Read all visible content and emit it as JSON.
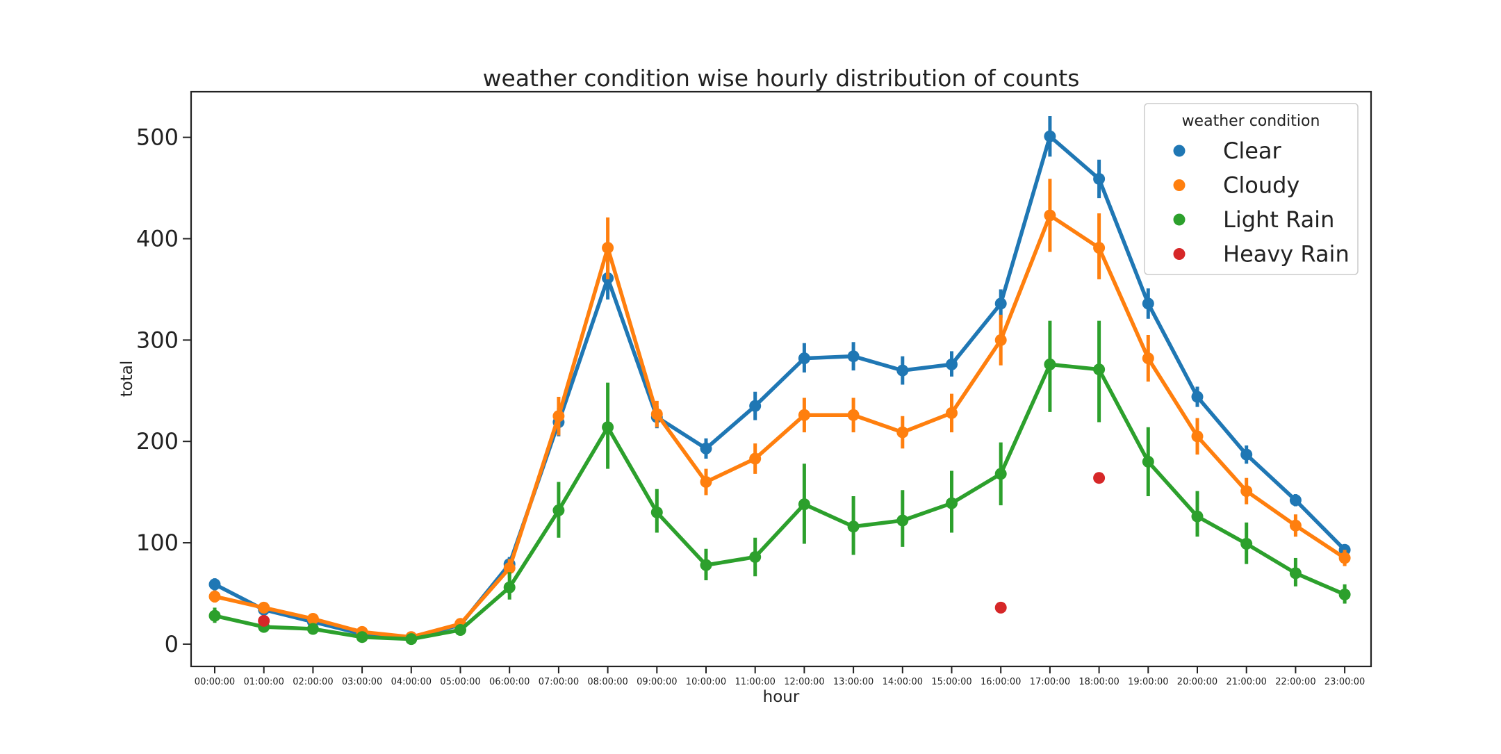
{
  "chart_data": {
    "type": "line",
    "title": "weather condition wise hourly distribution of counts",
    "xlabel": "hour",
    "ylabel": "total",
    "ylim": [
      -22,
      545
    ],
    "yticks": [
      0,
      100,
      200,
      300,
      400,
      500
    ],
    "grid": false,
    "legend": {
      "title": "weather condition",
      "placement": "top-right"
    },
    "categories": [
      "00:00:00",
      "01:00:00",
      "02:00:00",
      "03:00:00",
      "04:00:00",
      "05:00:00",
      "06:00:00",
      "07:00:00",
      "08:00:00",
      "09:00:00",
      "10:00:00",
      "11:00:00",
      "12:00:00",
      "13:00:00",
      "14:00:00",
      "15:00:00",
      "16:00:00",
      "17:00:00",
      "18:00:00",
      "19:00:00",
      "20:00:00",
      "21:00:00",
      "22:00:00",
      "23:00:00"
    ],
    "series": [
      {
        "name": "Clear",
        "color": "#1f77b4",
        "connected": true,
        "values": [
          59,
          34,
          22,
          10,
          6,
          19,
          79,
          219,
          361,
          224,
          193,
          235,
          282,
          284,
          270,
          276,
          336,
          501,
          459,
          336,
          244,
          187,
          142,
          93
        ],
        "err_low": [
          53,
          30,
          19,
          9,
          5,
          17,
          72,
          205,
          340,
          213,
          183,
          221,
          268,
          270,
          256,
          264,
          322,
          481,
          440,
          321,
          234,
          178,
          136,
          88
        ],
        "err_high": [
          65,
          38,
          25,
          11,
          7,
          21,
          86,
          233,
          382,
          235,
          203,
          249,
          297,
          298,
          284,
          289,
          350,
          521,
          478,
          351,
          254,
          196,
          148,
          98
        ]
      },
      {
        "name": "Cloudy",
        "color": "#ff7f0e",
        "connected": true,
        "values": [
          47,
          36,
          25,
          12,
          7,
          20,
          75,
          225,
          391,
          227,
          160,
          183,
          226,
          226,
          209,
          228,
          300,
          423,
          391,
          282,
          205,
          151,
          117,
          85
        ],
        "err_low": [
          41,
          31,
          22,
          10,
          6,
          17,
          66,
          206,
          360,
          214,
          147,
          168,
          209,
          209,
          193,
          209,
          275,
          387,
          360,
          259,
          187,
          138,
          106,
          77
        ],
        "err_high": [
          53,
          41,
          28,
          14,
          8,
          23,
          84,
          244,
          421,
          240,
          173,
          198,
          243,
          243,
          225,
          247,
          325,
          459,
          425,
          305,
          223,
          164,
          128,
          93
        ]
      },
      {
        "name": "Light Rain",
        "color": "#2ca02c",
        "connected": true,
        "values": [
          28,
          17,
          15,
          7,
          5,
          14,
          56,
          132,
          214,
          130,
          78,
          86,
          138,
          116,
          122,
          139,
          168,
          276,
          271,
          180,
          126,
          99,
          70,
          49
        ],
        "err_low": [
          21,
          13,
          12,
          5,
          3,
          11,
          44,
          105,
          173,
          110,
          63,
          67,
          99,
          88,
          96,
          110,
          137,
          229,
          219,
          146,
          106,
          79,
          57,
          40
        ],
        "err_high": [
          36,
          22,
          19,
          9,
          7,
          17,
          71,
          160,
          258,
          153,
          94,
          105,
          178,
          146,
          152,
          171,
          199,
          319,
          319,
          214,
          151,
          120,
          85,
          59
        ]
      },
      {
        "name": "Heavy Rain",
        "color": "#d62728",
        "connected": false,
        "points": [
          {
            "x": "01:00:00",
            "y": 23
          },
          {
            "x": "16:00:00",
            "y": 36
          },
          {
            "x": "18:00:00",
            "y": 164
          }
        ]
      }
    ]
  }
}
